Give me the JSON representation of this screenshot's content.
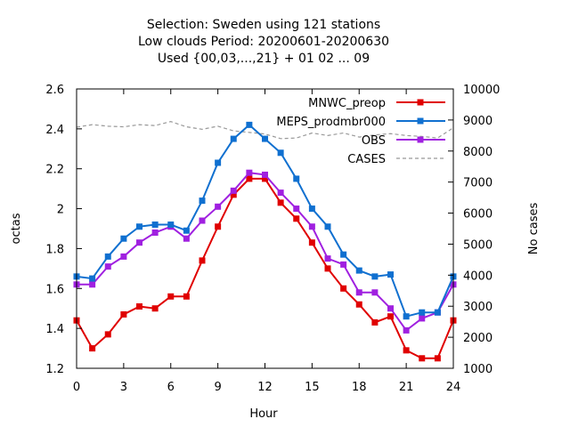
{
  "chart_data": {
    "type": "line",
    "title_lines": [
      "Selection: Sweden using   121 stations",
      "Low clouds   Period: 20200601-20200630",
      "Used {00,03,...,21} + 01 02 ... 09"
    ],
    "xlabel": "Hour",
    "ylabel": "octas",
    "y2label": "No cases",
    "xlim": [
      0,
      24
    ],
    "ylim": [
      1.2,
      2.6
    ],
    "y2lim": [
      1000,
      10000
    ],
    "xticks": [
      "0",
      "3",
      "6",
      "9",
      "12",
      "15",
      "18",
      "21",
      "24"
    ],
    "yticks": [
      "1.2",
      "1.4",
      "1.6",
      "1.8",
      "2",
      "2.2",
      "2.4",
      "2.6"
    ],
    "y2ticks": [
      "1000",
      "2000",
      "3000",
      "4000",
      "5000",
      "6000",
      "7000",
      "8000",
      "9000",
      "10000"
    ],
    "grid": false,
    "legend_position": "top-right",
    "x": [
      0,
      1,
      2,
      3,
      4,
      5,
      6,
      7,
      8,
      9,
      10,
      11,
      12,
      13,
      14,
      15,
      16,
      17,
      18,
      19,
      20,
      21,
      22,
      23,
      24
    ],
    "series": [
      {
        "name": "MNWC_preop",
        "color": "#e00000",
        "axis": "left",
        "style": "line-points",
        "values": [
          1.44,
          1.3,
          1.37,
          1.47,
          1.51,
          1.5,
          1.56,
          1.56,
          1.74,
          1.91,
          2.07,
          2.15,
          2.15,
          2.03,
          1.95,
          1.83,
          1.7,
          1.6,
          1.52,
          1.43,
          1.46,
          1.29,
          1.25,
          1.25,
          1.44
        ]
      },
      {
        "name": "MEPS_prodmbr000",
        "color": "#1070d0",
        "axis": "left",
        "style": "line-points",
        "values": [
          1.66,
          1.65,
          1.76,
          1.85,
          1.91,
          1.92,
          1.92,
          1.89,
          2.04,
          2.23,
          2.35,
          2.42,
          2.35,
          2.28,
          2.15,
          2.0,
          1.91,
          1.77,
          1.69,
          1.66,
          1.67,
          1.46,
          1.48,
          1.48,
          1.66
        ]
      },
      {
        "name": "OBS",
        "color": "#a020e0",
        "axis": "left",
        "style": "line-points",
        "values": [
          1.62,
          1.62,
          1.71,
          1.76,
          1.83,
          1.88,
          1.91,
          1.85,
          1.94,
          2.01,
          2.09,
          2.18,
          2.17,
          2.08,
          2.0,
          1.91,
          1.75,
          1.72,
          1.58,
          1.58,
          1.5,
          1.39,
          1.45,
          1.48,
          1.62
        ]
      },
      {
        "name": "CASES",
        "color": "#999999",
        "axis": "right",
        "style": "dashed",
        "values": [
          8770,
          8850,
          8800,
          8780,
          8850,
          8820,
          8950,
          8780,
          8700,
          8800,
          8650,
          8600,
          8550,
          8400,
          8420,
          8580,
          8500,
          8580,
          8450,
          8520,
          8560,
          8500,
          8470,
          8420,
          8750
        ]
      }
    ]
  }
}
